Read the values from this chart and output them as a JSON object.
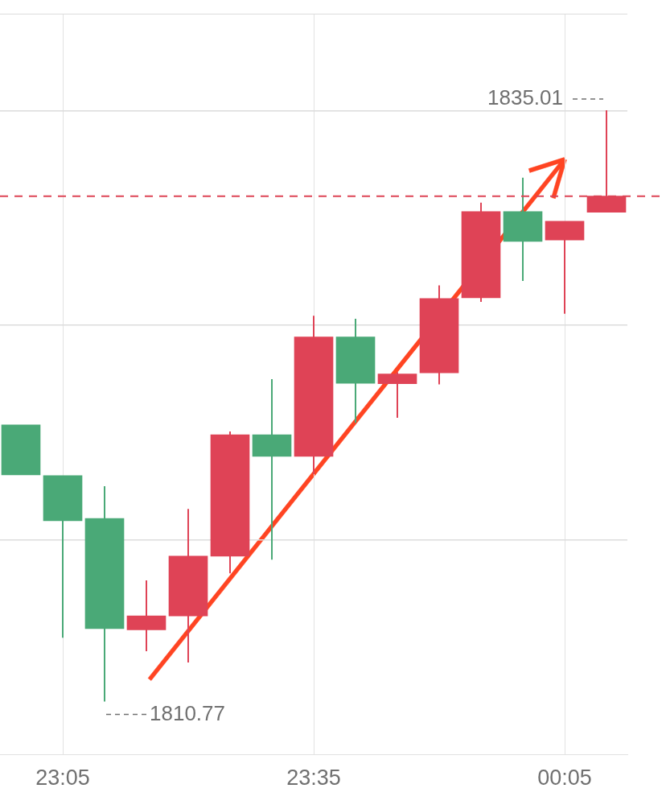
{
  "chart_data": {
    "type": "candlestick",
    "categories": [
      null,
      "23:05",
      null,
      null,
      null,
      null,
      null,
      "23:35",
      null,
      null,
      null,
      null,
      null,
      "00:05",
      null
    ],
    "ohlc": [
      [
        1822.11,
        1822.11,
        1820.06,
        1820.06
      ],
      [
        1820.03,
        1820.03,
        1813.39,
        1818.18
      ],
      [
        1818.28,
        1819.6,
        1810.77,
        1813.76
      ],
      [
        1813.71,
        1815.74,
        1812.83,
        1814.28
      ],
      [
        1814.28,
        1818.67,
        1812.37,
        1816.73
      ],
      [
        1816.73,
        1821.84,
        1816.03,
        1821.71
      ],
      [
        1821.71,
        1823.99,
        1816.59,
        1820.82
      ],
      [
        1820.82,
        1826.59,
        1820.09,
        1825.72
      ],
      [
        1825.72,
        1826.46,
        1822.2,
        1823.82
      ],
      [
        1823.8,
        1824.28,
        1822.4,
        1824.2
      ],
      [
        1824.25,
        1827.83,
        1823.77,
        1827.29
      ],
      [
        1827.32,
        1831.22,
        1827.16,
        1830.86
      ],
      [
        1830.86,
        1832.25,
        1828.01,
        1829.63
      ],
      [
        1829.69,
        1830.46,
        1826.67,
        1830.46
      ],
      [
        1830.83,
        1835.01,
        1830.83,
        1831.49
      ]
    ],
    "colors": [
      "#4aa977",
      "#4aa977",
      "#4aa977",
      "#df4356",
      "#df4356",
      "#df4356",
      "#4aa977",
      "#df4356",
      "#4aa977",
      "#df4356",
      "#df4356",
      "#df4356",
      "#4aa977",
      "#df4356",
      "#df4356"
    ],
    "ylim": [
      1808.61,
      1838.97
    ],
    "yticks": [
      {
        "value": 1817.4,
        "label": null
      },
      {
        "value": 1826.2,
        "label": null
      },
      {
        "value": 1835.0,
        "label": null
      }
    ],
    "tick_labels": "x",
    "grid": true,
    "ref_lines": [
      {
        "axis": "y",
        "value": 1831.49,
        "color": "#dd4455",
        "line_style": "dashed"
      }
    ],
    "annotations": [
      "1835.01",
      "1810.77"
    ]
  }
}
